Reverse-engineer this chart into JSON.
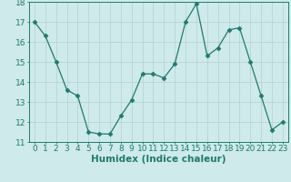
{
  "x": [
    0,
    1,
    2,
    3,
    4,
    5,
    6,
    7,
    8,
    9,
    10,
    11,
    12,
    13,
    14,
    15,
    16,
    17,
    18,
    19,
    20,
    21,
    22,
    23
  ],
  "y": [
    17.0,
    16.3,
    15.0,
    13.6,
    13.3,
    11.5,
    11.4,
    11.4,
    12.3,
    13.1,
    14.4,
    14.4,
    14.2,
    14.9,
    17.0,
    17.9,
    15.3,
    15.7,
    16.6,
    16.7,
    15.0,
    13.3,
    11.6,
    12.0
  ],
  "ylim": [
    11,
    18
  ],
  "yticks": [
    11,
    12,
    13,
    14,
    15,
    16,
    17,
    18
  ],
  "xlabel": "Humidex (Indice chaleur)",
  "line_color": "#1e7b6e",
  "marker": "D",
  "marker_size": 2.5,
  "bg_color": "#ceeaea",
  "grid_color": "#b8d4d4",
  "tick_label_fontsize": 6.5,
  "xlabel_fontsize": 7.5,
  "xlim_left": -0.5,
  "xlim_right": 23.5
}
